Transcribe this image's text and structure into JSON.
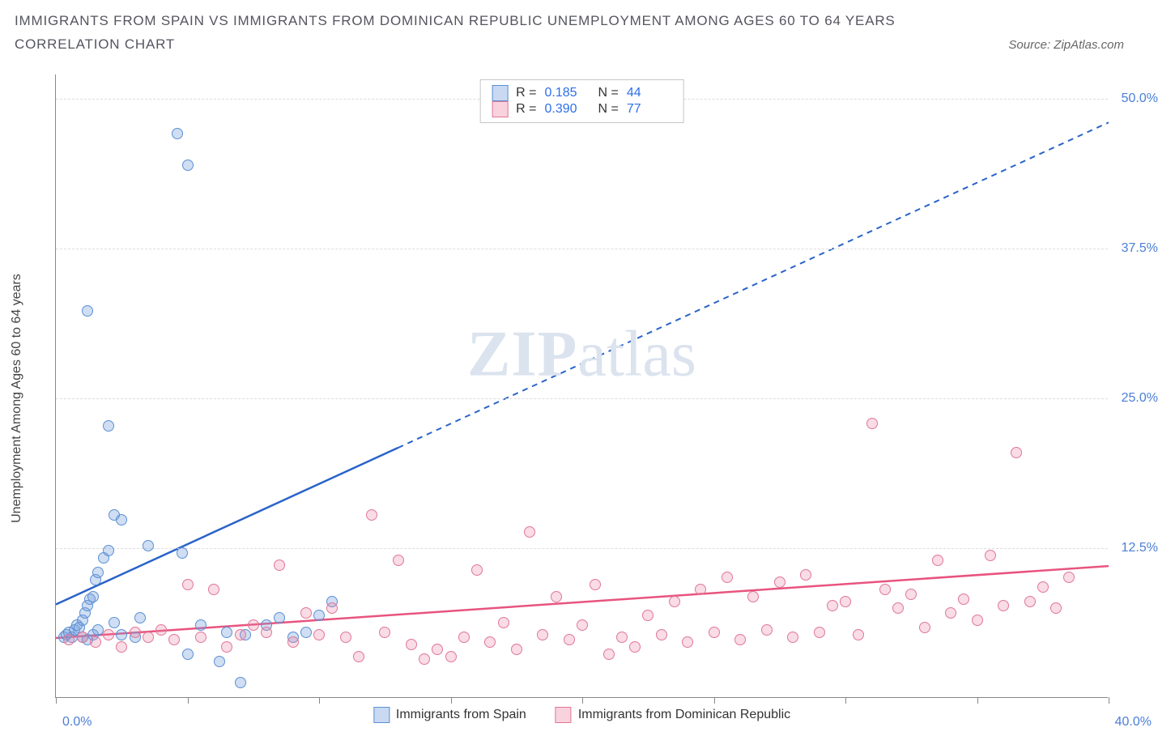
{
  "header": {
    "title": "IMMIGRANTS FROM SPAIN VS IMMIGRANTS FROM DOMINICAN REPUBLIC UNEMPLOYMENT AMONG AGES 60 TO 64 YEARS",
    "subtitle": "CORRELATION CHART",
    "source_prefix": "Source: ",
    "source_name": "ZipAtlas.com"
  },
  "chart": {
    "type": "scatter",
    "y_axis_label": "Unemployment Among Ages 60 to 64 years",
    "xlim": [
      0,
      40
    ],
    "ylim": [
      0,
      52
    ],
    "x_ticks": [
      0,
      5,
      10,
      15,
      20,
      25,
      30,
      35,
      40
    ],
    "x_tick_labels_shown": {
      "min": "0.0%",
      "max": "40.0%"
    },
    "y_ticks": [
      12.5,
      25.0,
      37.5,
      50.0
    ],
    "y_tick_labels": [
      "12.5%",
      "25.0%",
      "37.5%",
      "50.0%"
    ],
    "grid_color": "#dddddd",
    "axis_color": "#888888",
    "background_color": "#ffffff",
    "y_label_color": "#4b7fd6",
    "point_radius": 7,
    "watermark": {
      "zip": "ZIP",
      "atlas": "atlas"
    }
  },
  "series": [
    {
      "id": "spain",
      "name": "Immigrants from Spain",
      "color_fill": "rgba(120,160,220,0.35)",
      "color_stroke": "#5a8fd4",
      "trend_color": "#2a63c9",
      "R": "0.185",
      "N": "44",
      "trend": {
        "x1": 0,
        "y1": 7.8,
        "x2": 40,
        "y2": 48.0,
        "solid_until_x": 13
      },
      "points": [
        [
          0.3,
          5.0
        ],
        [
          0.4,
          5.2
        ],
        [
          0.5,
          5.4
        ],
        [
          0.6,
          5.0
        ],
        [
          0.7,
          5.6
        ],
        [
          0.8,
          6.0
        ],
        [
          0.9,
          5.8
        ],
        [
          1.0,
          6.4
        ],
        [
          1.1,
          7.0
        ],
        [
          1.2,
          7.6
        ],
        [
          1.3,
          8.2
        ],
        [
          1.4,
          8.4
        ],
        [
          1.5,
          9.8
        ],
        [
          1.6,
          10.4
        ],
        [
          1.8,
          11.6
        ],
        [
          2.0,
          12.2
        ],
        [
          1.0,
          5.0
        ],
        [
          1.2,
          4.8
        ],
        [
          1.4,
          5.2
        ],
        [
          1.6,
          5.6
        ],
        [
          2.2,
          6.2
        ],
        [
          2.5,
          5.2
        ],
        [
          3.0,
          5.0
        ],
        [
          3.2,
          6.6
        ],
        [
          3.5,
          12.6
        ],
        [
          4.8,
          12.0
        ],
        [
          5.0,
          3.6
        ],
        [
          5.5,
          6.0
        ],
        [
          6.2,
          3.0
        ],
        [
          6.5,
          5.4
        ],
        [
          7.0,
          1.2
        ],
        [
          7.2,
          5.2
        ],
        [
          8.0,
          6.0
        ],
        [
          8.5,
          6.6
        ],
        [
          9.0,
          5.0
        ],
        [
          9.5,
          5.4
        ],
        [
          10.0,
          6.8
        ],
        [
          10.5,
          8.0
        ],
        [
          2.0,
          22.6
        ],
        [
          2.2,
          15.2
        ],
        [
          2.5,
          14.8
        ],
        [
          1.2,
          32.2
        ],
        [
          4.6,
          47.0
        ],
        [
          5.0,
          44.4
        ]
      ]
    },
    {
      "id": "dr",
      "name": "Immigrants from Dominican Republic",
      "color_fill": "rgba(235,130,160,0.28)",
      "color_stroke": "#e07797",
      "trend_color": "#e8547e",
      "R": "0.390",
      "N": "77",
      "trend": {
        "x1": 0,
        "y1": 5.0,
        "x2": 40,
        "y2": 11.0,
        "solid_until_x": 40
      },
      "points": [
        [
          0.5,
          4.8
        ],
        [
          1.0,
          5.0
        ],
        [
          1.5,
          4.6
        ],
        [
          2.0,
          5.2
        ],
        [
          2.5,
          4.2
        ],
        [
          3.0,
          5.4
        ],
        [
          3.5,
          5.0
        ],
        [
          4.0,
          5.6
        ],
        [
          4.5,
          4.8
        ],
        [
          5.0,
          9.4
        ],
        [
          5.5,
          5.0
        ],
        [
          6.0,
          9.0
        ],
        [
          6.5,
          4.2
        ],
        [
          7.0,
          5.2
        ],
        [
          7.5,
          6.0
        ],
        [
          8.0,
          5.4
        ],
        [
          8.5,
          11.0
        ],
        [
          9.0,
          4.6
        ],
        [
          9.5,
          7.0
        ],
        [
          10.0,
          5.2
        ],
        [
          10.5,
          7.4
        ],
        [
          11.0,
          5.0
        ],
        [
          11.5,
          3.4
        ],
        [
          12.0,
          15.2
        ],
        [
          12.5,
          5.4
        ],
        [
          13.0,
          11.4
        ],
        [
          13.5,
          4.4
        ],
        [
          14.0,
          3.2
        ],
        [
          14.5,
          4.0
        ],
        [
          15.0,
          3.4
        ],
        [
          15.5,
          5.0
        ],
        [
          16.0,
          10.6
        ],
        [
          16.5,
          4.6
        ],
        [
          17.0,
          6.2
        ],
        [
          17.5,
          4.0
        ],
        [
          18.0,
          13.8
        ],
        [
          18.5,
          5.2
        ],
        [
          19.0,
          8.4
        ],
        [
          19.5,
          4.8
        ],
        [
          20.0,
          6.0
        ],
        [
          20.5,
          9.4
        ],
        [
          21.0,
          3.6
        ],
        [
          21.5,
          5.0
        ],
        [
          22.0,
          4.2
        ],
        [
          22.5,
          6.8
        ],
        [
          23.0,
          5.2
        ],
        [
          23.5,
          8.0
        ],
        [
          24.0,
          4.6
        ],
        [
          24.5,
          9.0
        ],
        [
          25.0,
          5.4
        ],
        [
          25.5,
          10.0
        ],
        [
          26.0,
          4.8
        ],
        [
          26.5,
          8.4
        ],
        [
          27.0,
          5.6
        ],
        [
          27.5,
          9.6
        ],
        [
          28.0,
          5.0
        ],
        [
          28.5,
          10.2
        ],
        [
          29.0,
          5.4
        ],
        [
          29.5,
          7.6
        ],
        [
          30.0,
          8.0
        ],
        [
          30.5,
          5.2
        ],
        [
          31.0,
          22.8
        ],
        [
          31.5,
          9.0
        ],
        [
          32.0,
          7.4
        ],
        [
          32.5,
          8.6
        ],
        [
          33.0,
          5.8
        ],
        [
          33.5,
          11.4
        ],
        [
          34.0,
          7.0
        ],
        [
          34.5,
          8.2
        ],
        [
          35.0,
          6.4
        ],
        [
          35.5,
          11.8
        ],
        [
          36.0,
          7.6
        ],
        [
          36.5,
          20.4
        ],
        [
          37.0,
          8.0
        ],
        [
          37.5,
          9.2
        ],
        [
          38.0,
          7.4
        ],
        [
          38.5,
          10.0
        ]
      ]
    }
  ],
  "legend_top": {
    "r_label": "R =",
    "n_label": "N ="
  },
  "legend_bottom": {
    "series1_label": "Immigrants from Spain",
    "series2_label": "Immigrants from Dominican Republic"
  }
}
